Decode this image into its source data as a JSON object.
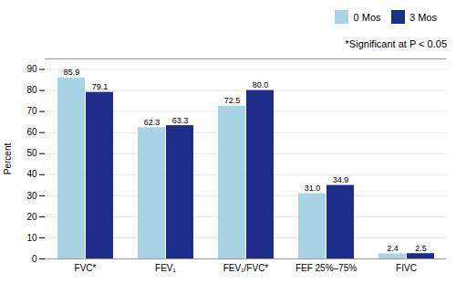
{
  "chart_data": {
    "type": "bar",
    "categories": [
      "FVC*",
      "FEV₁",
      "FEV₁/FVC*",
      "FEF 25%–75%",
      "FIVC"
    ],
    "series": [
      {
        "name": "0 Mos",
        "color": "#a8d4e6",
        "values": [
          85.9,
          62.3,
          72.5,
          31.0,
          2.4
        ],
        "value_labels": [
          "85.9",
          "62.3",
          "72.5",
          "31.0",
          "2.4"
        ]
      },
      {
        "name": "3 Mos",
        "color": "#1f2d8a",
        "values": [
          79.1,
          63.3,
          80.0,
          34.9,
          2.5
        ],
        "value_labels": [
          "79.1",
          "63.3",
          "80.0",
          "34.9",
          "2.5"
        ]
      }
    ],
    "ylabel": "Percent",
    "ylim": [
      0,
      95
    ],
    "yticks": [
      0,
      10,
      20,
      30,
      40,
      50,
      60,
      70,
      80,
      90
    ],
    "grid": true,
    "legend": "upper right",
    "data_labels": true,
    "annotations": [
      "*Significant at P < 0.05"
    ]
  }
}
